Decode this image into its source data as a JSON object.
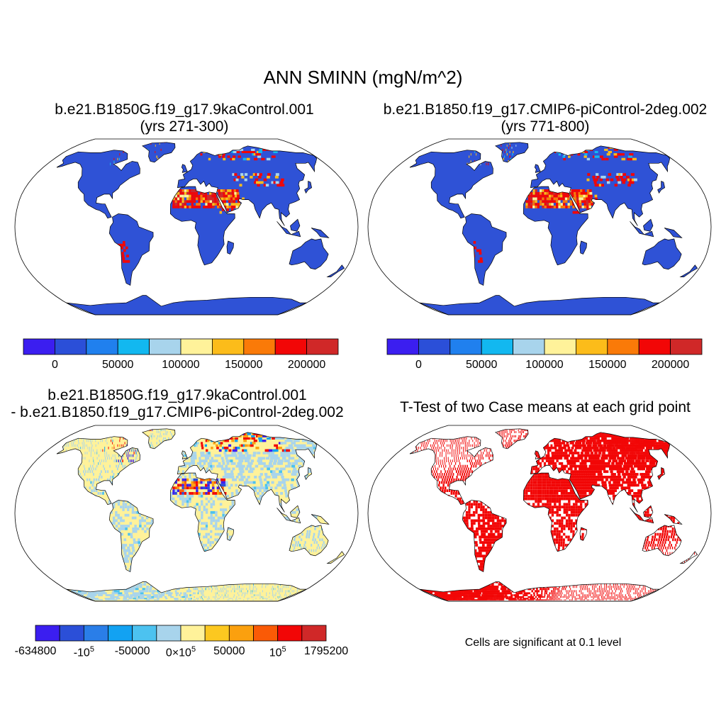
{
  "title": "ANN SMINN (mgN/m^2)",
  "panels": {
    "p1": {
      "title_line1": "b.e21.B1850G.f19_g17.9kaControl.001",
      "title_line2": "(yrs 271-300)"
    },
    "p2": {
      "title_line1": "b.e21.B1850.f19_g17.CMIP6-piControl-2deg.002",
      "title_line2": "(yrs 771-800)"
    },
    "p3": {
      "title_line1": "b.e21.B1850G.f19_g17.9kaControl.001",
      "title_line2": "- b.e21.B1850.f19_g17.CMIP6-piControl-2deg.002"
    },
    "p4": {
      "title_line1": "T-Test of two Case means at each grid point",
      "note": "Cells are significant at 0.1 level"
    }
  },
  "colorbars": {
    "case": {
      "colors": [
        "#3b1ef0",
        "#2b4fd8",
        "#2080ee",
        "#12b8f0",
        "#a8d4ec",
        "#fff29a",
        "#fcbc1a",
        "#fa7a08",
        "#f20606",
        "#d02828"
      ],
      "ticks": [
        "0",
        "50000",
        "100000",
        "150000",
        "200000"
      ]
    },
    "diff": {
      "colors": [
        "#3b1ef0",
        "#2b4fd8",
        "#2a7ee8",
        "#12a2f2",
        "#4cc2f0",
        "#a8d4ec",
        "#fff29a",
        "#fcc820",
        "#fba00e",
        "#fa5a06",
        "#f20606",
        "#d02828"
      ],
      "ticks": [
        {
          "base": "-634800",
          "exp": ""
        },
        {
          "base": "-10",
          "exp": "5"
        },
        {
          "base": "-50000",
          "exp": ""
        },
        {
          "base": "0×10",
          "exp": "5"
        },
        {
          "base": "50000",
          "exp": ""
        },
        {
          "base": "10",
          "exp": "5"
        },
        {
          "base": "1795200",
          "exp": ""
        }
      ]
    }
  },
  "colors": {
    "land_case": "#2f52d6",
    "land_diff": "#fff29a",
    "significant": "#f20606",
    "coast": "#000000"
  }
}
